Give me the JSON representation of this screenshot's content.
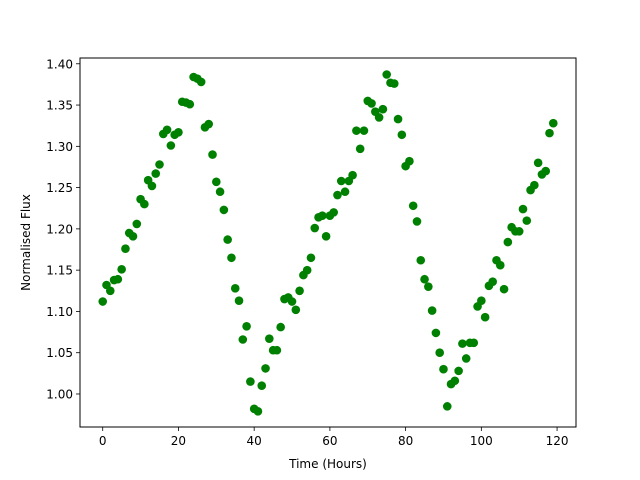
{
  "chart_data": {
    "type": "scatter",
    "xlabel": "Time (Hours)",
    "ylabel": "Normalised Flux",
    "xlim": [
      -6,
      125
    ],
    "ylim": [
      0.96,
      1.407
    ],
    "xticks": [
      0,
      20,
      40,
      60,
      80,
      100,
      120
    ],
    "yticks": [
      1.0,
      1.05,
      1.1,
      1.15,
      1.2,
      1.25,
      1.3,
      1.35,
      1.4
    ],
    "ytick_decimals": 2,
    "grid": false,
    "marker_color": "#008000",
    "series": [
      {
        "x": [
          0,
          1,
          2,
          3,
          4,
          5,
          6,
          7,
          8,
          9,
          10,
          11,
          12,
          13,
          14,
          15,
          16,
          17,
          18,
          19,
          20,
          21,
          22,
          23,
          24,
          25,
          26,
          27,
          28,
          29,
          30,
          31,
          32,
          33,
          34,
          35,
          36,
          37,
          38,
          39,
          40,
          41,
          42,
          43,
          44,
          45,
          46,
          47,
          48,
          49,
          50,
          51,
          52,
          53,
          54,
          55,
          56,
          57,
          58,
          59,
          60,
          61,
          62,
          63,
          64,
          65,
          66,
          67,
          68,
          69,
          70,
          71,
          72,
          73,
          74,
          75,
          76,
          77,
          78,
          79,
          80,
          81,
          82,
          83,
          84,
          85,
          86,
          87,
          88,
          89,
          90,
          91,
          92,
          93,
          94,
          95,
          96,
          97,
          98,
          99,
          100,
          101,
          102,
          103,
          104,
          105,
          106,
          107,
          108,
          109,
          110,
          111,
          112,
          113,
          114,
          115,
          116,
          117,
          118,
          119
        ],
        "y": [
          1.112,
          1.132,
          1.125,
          1.138,
          1.139,
          1.151,
          1.176,
          1.195,
          1.191,
          1.206,
          1.236,
          1.23,
          1.259,
          1.252,
          1.267,
          1.278,
          1.315,
          1.32,
          1.301,
          1.314,
          1.317,
          1.354,
          1.353,
          1.351,
          1.384,
          1.382,
          1.378,
          1.323,
          1.327,
          1.29,
          1.257,
          1.245,
          1.223,
          1.187,
          1.165,
          1.128,
          1.113,
          1.066,
          1.082,
          1.015,
          0.982,
          0.979,
          1.01,
          1.031,
          1.067,
          1.053,
          1.053,
          1.081,
          1.115,
          1.117,
          1.112,
          1.102,
          1.125,
          1.144,
          1.15,
          1.165,
          1.201,
          1.214,
          1.216,
          1.191,
          1.216,
          1.22,
          1.241,
          1.258,
          1.245,
          1.258,
          1.265,
          1.319,
          1.297,
          1.319,
          1.355,
          1.352,
          1.342,
          1.335,
          1.345,
          1.387,
          1.377,
          1.376,
          1.333,
          1.314,
          1.276,
          1.282,
          1.228,
          1.209,
          1.162,
          1.139,
          1.13,
          1.101,
          1.074,
          1.05,
          1.03,
          0.985,
          1.012,
          1.016,
          1.028,
          1.061,
          1.043,
          1.062,
          1.062,
          1.106,
          1.113,
          1.093,
          1.131,
          1.136,
          1.162,
          1.156,
          1.127,
          1.184,
          1.202,
          1.197,
          1.197,
          1.224,
          1.21,
          1.247,
          1.253,
          1.28,
          1.266,
          1.27,
          1.316,
          1.328
        ]
      }
    ]
  }
}
